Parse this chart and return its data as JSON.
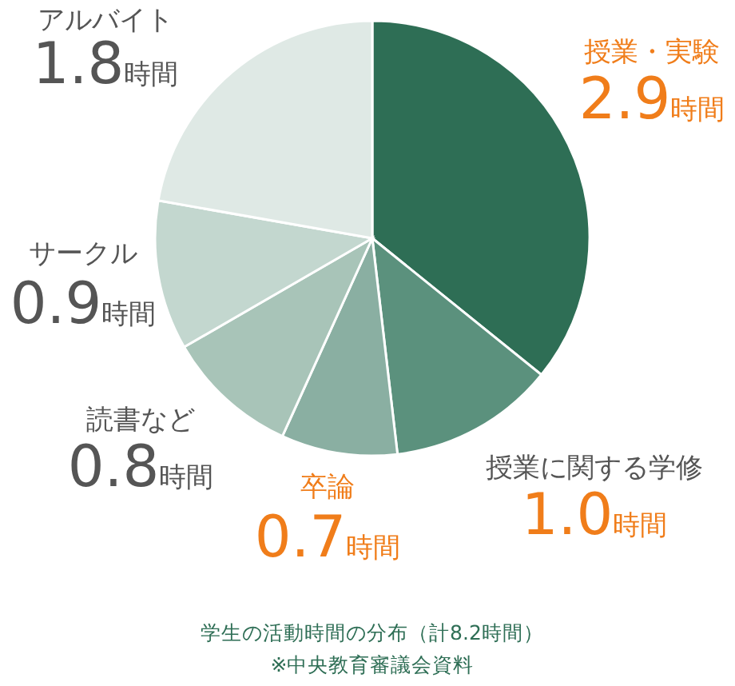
{
  "chart_data": {
    "type": "pie",
    "title": "学生の活動時間の分布（計8.2時間）",
    "annotations": [
      "※中央教育審議会資料"
    ],
    "categories": [
      "授業・実験",
      "授業に関する学修",
      "卒論",
      "読書など",
      "サークル",
      "アルバイト"
    ],
    "values": [
      2.9,
      1.0,
      0.7,
      0.8,
      0.9,
      1.8
    ],
    "value_labels": [
      "2.9時間",
      "1.0時間",
      "0.7時間",
      "0.8時間",
      "0.9時間",
      "1.8時間"
    ],
    "colors": [
      "#2e6e55",
      "#5b917d",
      "#8aafa2",
      "#a8c4b8",
      "#c3d7cf",
      "#dfe9e5"
    ]
  }
}
